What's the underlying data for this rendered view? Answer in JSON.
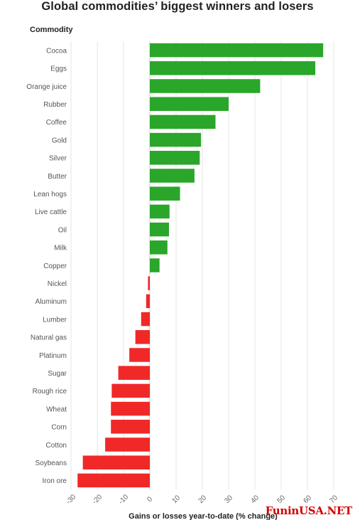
{
  "chart_data": {
    "type": "bar",
    "orientation": "horizontal",
    "title": "Global commodities’ biggest winners and losers",
    "category_header": "Commodity",
    "xlabel": "Gains or losses year-to-date (% change)",
    "xlim": [
      -30,
      70
    ],
    "xticks": [
      "-30",
      "-20",
      "-10",
      "0",
      "10",
      "20",
      "30",
      "40",
      "50",
      "60",
      "70"
    ],
    "grid": true,
    "colors": {
      "gain": "#2aa62a",
      "loss": "#f02828",
      "grid": "#e6e6e6"
    },
    "categories": [
      "Cocoa",
      "Eggs",
      "Orange juice",
      "Rubber",
      "Coffee",
      "Gold",
      "Silver",
      "Butter",
      "Lean hogs",
      "Live cattle",
      "Oil",
      "Milk",
      "Copper",
      "Nickel",
      "Aluminum",
      "Lumber",
      "Natural gas",
      "Platinum",
      "Sugar",
      "Rough rice",
      "Wheat",
      "Corn",
      "Cotton",
      "Soybeans",
      "Iron ore"
    ],
    "values": [
      66,
      63,
      42,
      30,
      25,
      19.5,
      19,
      17,
      11.5,
      7.5,
      7.3,
      6.7,
      3.7,
      -0.7,
      -1.4,
      -3.3,
      -5.5,
      -7.8,
      -12,
      -14.5,
      -14.8,
      -14.8,
      -17,
      -25.5,
      -27.5
    ]
  },
  "watermark": "FuninUSA.NET"
}
